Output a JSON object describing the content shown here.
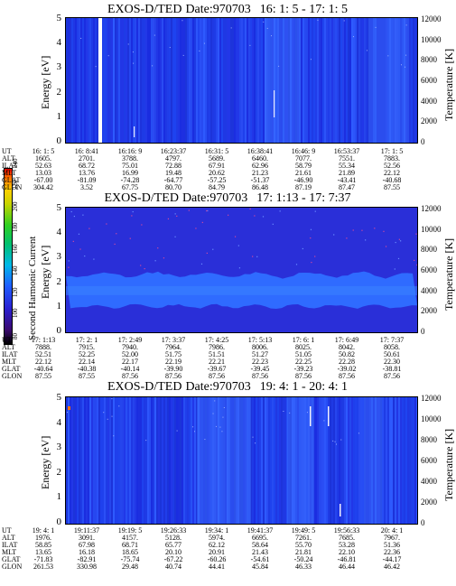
{
  "panels": [
    {
      "title": {
        "name": "EXOS-D/TED",
        "date": "Date:970703",
        "range": "16: 1: 5 - 17: 1: 5"
      },
      "ytick_left": [
        "0",
        "1",
        "2",
        "3",
        "4",
        "5"
      ],
      "ytick_right": [
        "0",
        "2000",
        "4000",
        "6000",
        "8000",
        "10000",
        "12000"
      ],
      "ylabel_left": "Energy [eV]",
      "ylabel_right": "Temperature [K]",
      "rows": [
        {
          "label": "UT",
          "values": [
            "16: 1: 5",
            "16: 8:41",
            "16:16: 9",
            "16:23:37",
            "16:31: 5",
            "16:38:41",
            "16:46: 9",
            "16:53:37",
            "17: 1: 5"
          ]
        },
        {
          "label": "ALT",
          "values": [
            "1605.",
            "2701.",
            "3788.",
            "4797.",
            "5689.",
            "6460.",
            "7077.",
            "7551.",
            "7883."
          ]
        },
        {
          "label": "ILAT",
          "values": [
            "52.63",
            "68.72",
            "75.01",
            "72.88",
            "67.91",
            "62.96",
            "58.79",
            "55.34",
            "52.56"
          ]
        },
        {
          "label": "MLT",
          "values": [
            "13.03",
            "13.76",
            "16.99",
            "19.48",
            "20.62",
            "21.23",
            "21.61",
            "21.89",
            "22.12"
          ]
        },
        {
          "label": "GLAT",
          "values": [
            "-67.00",
            "-81.09",
            "-74.28",
            "-64.77",
            "-57.25",
            "-51.37",
            "-46.90",
            "-43.41",
            "-40.68"
          ]
        },
        {
          "label": "GLON",
          "values": [
            "304.42",
            "3.52",
            "67.75",
            "80.70",
            "84.79",
            "86.48",
            "87.19",
            "87.47",
            "87.55"
          ]
        }
      ]
    },
    {
      "title": {
        "name": "EXOS-D/TED",
        "date": "Date:970703",
        "range": "17: 1:13 - 17: 7:37"
      },
      "ytick_left": [
        "0",
        "1",
        "2",
        "3",
        "4",
        "5"
      ],
      "ytick_right": [
        "0",
        "2000",
        "4000",
        "6000",
        "8000",
        "10000",
        "12000"
      ],
      "ylabel_left": "Energy [eV]",
      "ylabel_right": "Temperature [K]",
      "rows": [
        {
          "label": "UT",
          "values": [
            "17: 1:13",
            "17: 2: 1",
            "17: 2:49",
            "17: 3:37",
            "17: 4:25",
            "17: 5:13",
            "17: 6: 1",
            "17: 6:49",
            "17: 7:37"
          ]
        },
        {
          "label": "ALT",
          "values": [
            "7888.",
            "7915.",
            "7940.",
            "7964.",
            "7986.",
            "8006.",
            "8025.",
            "8042.",
            "8058."
          ]
        },
        {
          "label": "ILAT",
          "values": [
            "52.51",
            "52.25",
            "52.00",
            "51.75",
            "51.51",
            "51.27",
            "51.05",
            "50.82",
            "50.61"
          ]
        },
        {
          "label": "MLT",
          "values": [
            "22.12",
            "22.14",
            "22.17",
            "22.19",
            "22.21",
            "22.23",
            "22.25",
            "22.28",
            "22.30"
          ]
        },
        {
          "label": "GLAT",
          "values": [
            "-40.64",
            "-40.38",
            "-40.14",
            "-39.90",
            "-39.67",
            "-39.45",
            "-39.23",
            "-39.02",
            "-38.81"
          ]
        },
        {
          "label": "GLON",
          "values": [
            "87.55",
            "87.55",
            "87.56",
            "87.56",
            "87.56",
            "87.56",
            "87.56",
            "87.56",
            "87.56"
          ]
        }
      ]
    },
    {
      "title": {
        "name": "EXOS-D/TED",
        "date": "Date:970703",
        "range": "19: 4: 1 - 20: 4: 1"
      },
      "ytick_left": [
        "0",
        "1",
        "2",
        "3",
        "4",
        "5"
      ],
      "ytick_right": [
        "0",
        "2000",
        "4000",
        "6000",
        "8000",
        "10000",
        "12000"
      ],
      "ylabel_left": "Energy [eV]",
      "ylabel_right": "Temperature [K]",
      "rows": [
        {
          "label": "UT",
          "values": [
            "19: 4: 1",
            "19:11:37",
            "19:19: 5",
            "19:26:33",
            "19:34: 1",
            "19:41:37",
            "19:49: 5",
            "19:56:33",
            "20: 4: 1"
          ]
        },
        {
          "label": "ALT",
          "values": [
            "1976.",
            "3091.",
            "4157.",
            "5128.",
            "5974.",
            "6695.",
            "7261.",
            "7685.",
            "7967."
          ]
        },
        {
          "label": "ILAT",
          "values": [
            "58.85",
            "67.98",
            "68.71",
            "65.77",
            "62.12",
            "58.64",
            "55.70",
            "53.28",
            "51.36"
          ]
        },
        {
          "label": "MLT",
          "values": [
            "13.65",
            "16.18",
            "18.65",
            "20.10",
            "20.91",
            "21.43",
            "21.81",
            "22.10",
            "22.36"
          ]
        },
        {
          "label": "GLAT",
          "values": [
            "-71.83",
            "-82.91",
            "-75.74",
            "-67.22",
            "-60.26",
            "-54.61",
            "-50.24",
            "-46.81",
            "-44.17"
          ]
        },
        {
          "label": "GLON",
          "values": [
            "261.53",
            "330.98",
            "29.48",
            "40.74",
            "44.41",
            "45.84",
            "46.33",
            "46.44",
            "46.42"
          ]
        }
      ]
    }
  ],
  "colorbar": {
    "label": "Second Harmonic Current",
    "ticks": [
      "80",
      "100",
      "120",
      "140",
      "160",
      "180",
      "200",
      "220",
      "240"
    ],
    "colors": [
      "#000000",
      "#3a0a6e",
      "#2a1fd0",
      "#1f5cff",
      "#00b8e8",
      "#00c070",
      "#30d020",
      "#c8d400",
      "#ffd000",
      "#ff7000",
      "#e00000"
    ]
  },
  "chart_data": [
    {
      "type": "heatmap",
      "title": "EXOS-D/TED Date:970703 16: 1: 5 - 17: 1: 5",
      "xlabel": "UT",
      "ylabel": "Energy [eV]",
      "y2label": "Temperature [K]",
      "ylim": [
        0,
        5
      ],
      "y2lim": [
        0,
        12000
      ],
      "x_ticks": [
        "16: 1: 5",
        "16: 8:41",
        "16:16: 9",
        "16:23:37",
        "16:31: 5",
        "16:38:41",
        "16:46: 9",
        "16:53:37",
        "17: 1: 5"
      ],
      "background_level": 125,
      "features": [
        {
          "x_frac": 0.095,
          "note": "white data gap"
        },
        {
          "x_frac": 0.6,
          "level": 130
        },
        {
          "x_frac": 0.9,
          "level": 130
        }
      ]
    },
    {
      "type": "heatmap",
      "title": "EXOS-D/TED Date:970703 17: 1:13 - 17: 7:37",
      "xlabel": "UT",
      "ylabel": "Energy [eV]",
      "y2label": "Temperature [K]",
      "ylim": [
        0,
        5
      ],
      "y2lim": [
        0,
        12000
      ],
      "x_ticks": [
        "17: 1:13",
        "17: 2: 1",
        "17: 2:49",
        "17: 3:37",
        "17: 4:25",
        "17: 5:13",
        "17: 6: 1",
        "17: 6:49",
        "17: 7:37"
      ],
      "background_level": 120,
      "band": {
        "energy_range": [
          1.0,
          2.5
        ],
        "level": 135
      }
    },
    {
      "type": "heatmap",
      "title": "EXOS-D/TED Date:970703 19: 4: 1 - 20: 4: 1",
      "xlabel": "UT",
      "ylabel": "Energy [eV]",
      "y2label": "Temperature [K]",
      "ylim": [
        0,
        5
      ],
      "y2lim": [
        0,
        12000
      ],
      "x_ticks": [
        "19: 4: 1",
        "19:11:37",
        "19:19: 5",
        "19:26:33",
        "19:34: 1",
        "19:41:37",
        "19:49: 5",
        "19:56:33",
        "20: 4: 1"
      ],
      "background_level": 125
    }
  ]
}
